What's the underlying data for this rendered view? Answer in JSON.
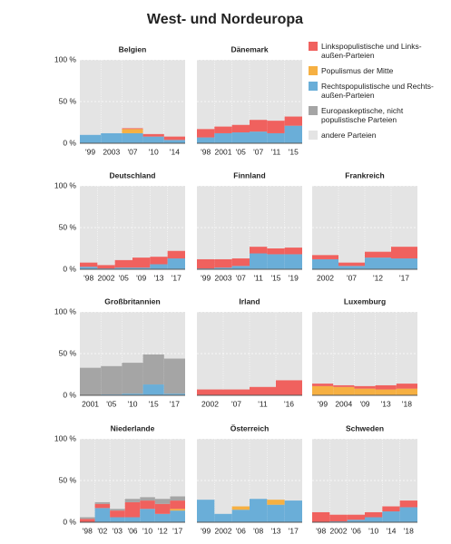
{
  "chart_data": {
    "type": "bar",
    "stacked": true,
    "title": "West- und Nordeuropa",
    "ylim": [
      0,
      100
    ],
    "yticks": [
      {
        "value": 0,
        "label": "0 %"
      },
      {
        "value": 50,
        "label": "50 %"
      },
      {
        "value": 100,
        "label": "100 %"
      }
    ],
    "grid": true,
    "series": [
      {
        "name": "Linkspopulistische und Links-außen-Parteien",
        "color": "#f0615e"
      },
      {
        "name": "Populismus der Mitte",
        "color": "#f6b042"
      },
      {
        "name": "Rechtspopulistische und Rechts-außen-Parteien",
        "color": "#6aaed8"
      },
      {
        "name": "Europaskeptische, nicht populistische Parteien",
        "color": "#a5a5a5"
      }
    ],
    "background": {
      "name": "andere Parteien",
      "color": "#e4e4e4"
    },
    "panels": [
      {
        "title": "Belgien",
        "categories": [
          "'99",
          "2003",
          "'07",
          "'10",
          "'14"
        ],
        "series": [
          {
            "values": [
              0,
              0,
              1,
              3,
              4
            ]
          },
          {
            "values": [
              0,
              0,
              5,
              0,
              0
            ]
          },
          {
            "values": [
              10,
              12,
              12,
              8,
              4
            ]
          },
          {
            "values": [
              0,
              0,
              0,
              0,
              0
            ]
          }
        ]
      },
      {
        "title": "Dänemark",
        "categories": [
          "'98",
          "2001",
          "'05",
          "'07",
          "'11",
          "'15"
        ],
        "series": [
          {
            "values": [
              10,
              8,
              9,
              14,
              15,
              11
            ]
          },
          {
            "values": [
              0,
              0,
              0,
              0,
              0,
              0
            ]
          },
          {
            "values": [
              7,
              12,
              13,
              14,
              12,
              21
            ]
          },
          {
            "values": [
              0,
              0,
              0,
              0,
              0,
              0
            ]
          }
        ]
      },
      {
        "title": "Deutschland",
        "categories": [
          "'98",
          "2002",
          "'05",
          "'09",
          "'13",
          "'17"
        ],
        "series": [
          {
            "values": [
              5,
              4,
              9,
              12,
              9,
              9
            ]
          },
          {
            "values": [
              0,
              0,
              0,
              0,
              0,
              0
            ]
          },
          {
            "values": [
              3,
              1,
              2,
              2,
              6,
              13
            ]
          },
          {
            "values": [
              0,
              0,
              0,
              0,
              0,
              0
            ]
          }
        ]
      },
      {
        "title": "Finnland",
        "categories": [
          "'99",
          "2003",
          "'07",
          "'11",
          "'15",
          "'19"
        ],
        "series": [
          {
            "values": [
              11,
              10,
              9,
              8,
              7,
              8
            ]
          },
          {
            "values": [
              0,
              0,
              0,
              0,
              0,
              0
            ]
          },
          {
            "values": [
              1,
              2,
              4,
              19,
              18,
              18
            ]
          },
          {
            "values": [
              0,
              0,
              0,
              0,
              0,
              0
            ]
          }
        ]
      },
      {
        "title": "Frankreich",
        "categories": [
          "2002",
          "'07",
          "'12",
          "'17"
        ],
        "series": [
          {
            "values": [
              5,
              4,
              7,
              14
            ]
          },
          {
            "values": [
              0,
              0,
              0,
              0
            ]
          },
          {
            "values": [
              12,
              4,
              14,
              13
            ]
          },
          {
            "values": [
              0,
              0,
              0,
              0
            ]
          }
        ]
      },
      {
        "title": "Großbritannien",
        "categories": [
          "2001",
          "'05",
          "'10",
          "'15",
          "'17"
        ],
        "series": [
          {
            "values": [
              0,
              0,
              0,
              0,
              0
            ]
          },
          {
            "values": [
              0,
              0,
              0,
              0,
              0
            ]
          },
          {
            "values": [
              0,
              1,
              2,
              13,
              2
            ]
          },
          {
            "values": [
              33,
              34,
              37,
              36,
              42
            ]
          }
        ]
      },
      {
        "title": "Irland",
        "categories": [
          "2002",
          "'07",
          "'11",
          "'16"
        ],
        "series": [
          {
            "values": [
              7,
              7,
              10,
              18
            ]
          },
          {
            "values": [
              0,
              0,
              0,
              0
            ]
          },
          {
            "values": [
              0,
              0,
              0,
              0
            ]
          },
          {
            "values": [
              0,
              0,
              0,
              0
            ]
          }
        ]
      },
      {
        "title": "Luxemburg",
        "categories": [
          "'99",
          "2004",
          "'09",
          "'13",
          "'18"
        ],
        "series": [
          {
            "values": [
              3,
              2,
              3,
              5,
              6
            ]
          },
          {
            "values": [
              11,
              10,
              8,
              7,
              8
            ]
          },
          {
            "values": [
              0,
              0,
              0,
              0,
              0
            ]
          },
          {
            "values": [
              0,
              0,
              0,
              0,
              0
            ]
          }
        ]
      },
      {
        "title": "Niederlande",
        "categories": [
          "'98",
          "'02",
          "'03",
          "'06",
          "'10",
          "'12",
          "'17"
        ],
        "series": [
          {
            "values": [
              4,
              5,
              8,
              18,
              10,
              12,
              10
            ]
          },
          {
            "values": [
              0,
              0,
              0,
              0,
              0,
              0,
              2
            ]
          },
          {
            "values": [
              0,
              17,
              6,
              6,
              16,
              10,
              14
            ]
          },
          {
            "values": [
              2,
              2,
              2,
              4,
              4,
              6,
              5
            ]
          }
        ]
      },
      {
        "title": "Österreich",
        "categories": [
          "'99",
          "2002",
          "'06",
          "'08",
          "'13",
          "'17"
        ],
        "series": [
          {
            "values": [
              0,
              0,
              0,
              0,
              0,
              0
            ]
          },
          {
            "values": [
              0,
              0,
              4,
              0,
              6,
              0
            ]
          },
          {
            "values": [
              27,
              10,
              15,
              28,
              21,
              26
            ]
          },
          {
            "values": [
              0,
              0,
              0,
              0,
              0,
              0
            ]
          }
        ]
      },
      {
        "title": "Schweden",
        "categories": [
          "'98",
          "2002",
          "'06",
          "'10",
          "'14",
          "'18"
        ],
        "series": [
          {
            "values": [
              12,
              8,
              6,
              6,
              6,
              8
            ]
          },
          {
            "values": [
              0,
              0,
              0,
              0,
              0,
              0
            ]
          },
          {
            "values": [
              0,
              1,
              3,
              6,
              13,
              18
            ]
          },
          {
            "values": [
              0,
              0,
              0,
              0,
              0,
              0
            ]
          }
        ]
      }
    ]
  }
}
